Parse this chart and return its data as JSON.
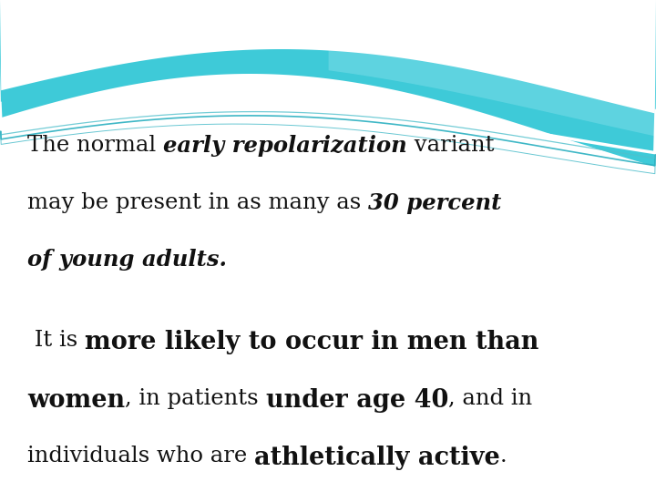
{
  "bg_color": "#ffffff",
  "text_color": "#111111",
  "figsize": [
    7.2,
    5.4
  ],
  "dpi": 100,
  "wave": {
    "teal_main": "#3ecad8",
    "teal_light": "#6dd8e4",
    "teal_mid": "#50c0cc",
    "teal_dark": "#2ab0c0",
    "white": "#ffffff"
  },
  "para1": [
    {
      "text": "The normal ",
      "style": "normal"
    },
    {
      "text": "early repolarization",
      "style": "bold_italic"
    },
    {
      "text": " variant",
      "style": "normal"
    }
  ],
  "para1_line2": [
    {
      "text": "may be present in as many as ",
      "style": "normal"
    },
    {
      "text": "30 percent",
      "style": "bold_italic"
    }
  ],
  "para1_line3": [
    {
      "text": "of young adults.",
      "style": "bold_italic"
    }
  ],
  "para2_line1": [
    {
      "text": " It is ",
      "style": "normal"
    },
    {
      "text": "more likely to occur in men than",
      "style": "bold"
    }
  ],
  "para2_line2": [
    {
      "text": "women",
      "style": "bold"
    },
    {
      "text": ", in patients ",
      "style": "normal"
    },
    {
      "text": "under age 40",
      "style": "bold"
    },
    {
      "text": ", and in",
      "style": "normal"
    }
  ],
  "para2_line3": [
    {
      "text": "individuals who are ",
      "style": "normal"
    },
    {
      "text": "athletically active",
      "style": "bold"
    },
    {
      "text": ".",
      "style": "normal"
    }
  ]
}
